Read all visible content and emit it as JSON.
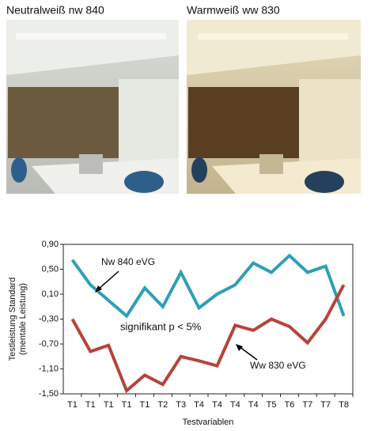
{
  "photos": {
    "captions": [
      "Neutralweiß nw 840",
      "Warmweiß ww 830"
    ]
  },
  "chart_data": {
    "type": "line",
    "y_label": [
      "Testleistung Standard",
      "(mentale Leistung)"
    ],
    "x_label": "Testvariablen",
    "annotation": "signifikant p < 5%",
    "categories": [
      "T1",
      "T1",
      "T1",
      "T1",
      "T1",
      "T2",
      "T3",
      "T4",
      "T4",
      "T4",
      "T4",
      "T5",
      "T6",
      "T7",
      "T7",
      "T8"
    ],
    "series": [
      {
        "name": "Nw 840 eVG",
        "color": "#2f9fb6",
        "values": [
          0.65,
          0.25,
          0.0,
          -0.25,
          0.2,
          -0.1,
          0.45,
          -0.12,
          0.1,
          0.25,
          0.6,
          0.45,
          0.72,
          0.45,
          0.55,
          -0.25
        ]
      },
      {
        "name": "Ww 830 eVG",
        "color": "#b5443a",
        "values": [
          -0.3,
          -0.82,
          -0.72,
          -1.45,
          -1.2,
          -1.35,
          -0.9,
          -0.97,
          -1.05,
          -0.4,
          -0.48,
          -0.3,
          -0.42,
          -0.68,
          -0.3,
          0.25
        ]
      }
    ],
    "ylim": [
      -1.5,
      0.9
    ],
    "yticks": [
      {
        "value": 0.9,
        "label": "0,90"
      },
      {
        "value": 0.5,
        "label": "0,50"
      },
      {
        "value": 0.1,
        "label": "0,10"
      },
      {
        "value": -0.3,
        "label": "-0,30"
      },
      {
        "value": -0.7,
        "label": "-0,70"
      },
      {
        "value": -1.1,
        "label": "-1,10"
      },
      {
        "value": -1.5,
        "label": "-1,50"
      }
    ]
  }
}
